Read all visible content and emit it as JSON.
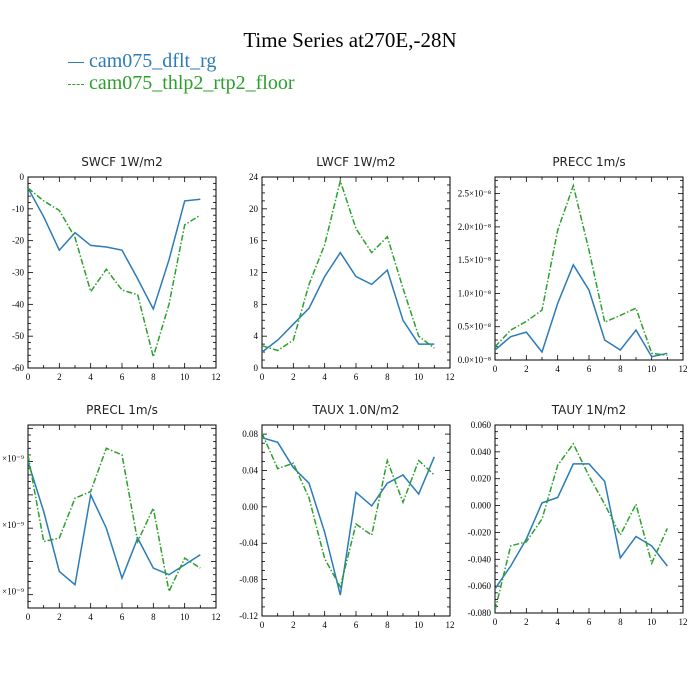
{
  "title": "Time Series at270E,-28N",
  "legend": [
    {
      "name": "cam075_dflt_rg",
      "color": "#2b7bb9"
    },
    {
      "name": "cam075_thlp2_rtp2_floor",
      "color": "#2ca02c"
    }
  ],
  "chart_data": [
    {
      "type": "line",
      "title": "SWCF   1W/m2",
      "x": [
        0,
        1,
        2,
        3,
        4,
        5,
        6,
        7,
        8,
        9,
        10,
        11
      ],
      "xlim": [
        0,
        12
      ],
      "ylim": [
        -60,
        0
      ],
      "xticks": [
        "0",
        "2",
        "4",
        "6",
        "8",
        "10",
        "12"
      ],
      "yticks": [
        "0",
        "-10",
        "-20",
        "-30",
        "-40",
        "-50",
        "-60"
      ],
      "series": [
        {
          "name": "cam075_dflt_rg",
          "values": [
            -3.5,
            -12.5,
            -23,
            -17.5,
            -21.5,
            -22,
            -23,
            -32,
            -41.5,
            -26,
            -7.5,
            -7
          ]
        },
        {
          "name": "cam075_thlp2_rtp2_floor",
          "values": [
            -3.5,
            -7.5,
            -10.5,
            -19,
            -36,
            -29,
            -35.5,
            -37,
            -56.5,
            -40,
            -15,
            -12
          ]
        }
      ]
    },
    {
      "type": "line",
      "title": "LWCF   1W/m2",
      "x": [
        0,
        1,
        2,
        3,
        4,
        5,
        6,
        7,
        8,
        9,
        10,
        11
      ],
      "xlim": [
        0,
        12
      ],
      "ylim": [
        0,
        24
      ],
      "xticks": [
        "0",
        "2",
        "4",
        "6",
        "8",
        "10",
        "12"
      ],
      "yticks": [
        "24",
        "20",
        "16",
        "12",
        "8",
        "4",
        "0"
      ],
      "series": [
        {
          "name": "cam075_dflt_rg",
          "values": [
            2,
            3.5,
            5.5,
            7.5,
            11.5,
            14.5,
            11.5,
            10.5,
            12.3,
            6,
            3,
            3
          ]
        },
        {
          "name": "cam075_thlp2_rtp2_floor",
          "values": [
            2.8,
            2.2,
            3.5,
            10.5,
            15.5,
            23.5,
            17.5,
            14.5,
            16.5,
            10,
            4,
            2.5
          ]
        }
      ]
    },
    {
      "type": "line",
      "title": "PRECC   1m/s",
      "x": [
        0,
        1,
        2,
        3,
        4,
        5,
        6,
        7,
        8,
        9,
        10,
        11
      ],
      "xlim": [
        0,
        12
      ],
      "ylim": [
        0,
        2.75
      ],
      "xticks": [
        "0",
        "2",
        "4",
        "6",
        "8",
        "10",
        "12"
      ],
      "yticks": [
        "2.5×10⁻⁸",
        "2.0×10⁻⁸",
        "1.5×10⁻⁸",
        "1.0×10⁻⁸",
        "0.5×10⁻⁸",
        "0.0×10⁻⁸"
      ],
      "series": [
        {
          "name": "cam075_dflt_rg",
          "values": [
            0.15,
            0.35,
            0.42,
            0.12,
            0.85,
            1.43,
            1.05,
            0.3,
            0.15,
            0.45,
            0.05,
            0.1
          ]
        },
        {
          "name": "cam075_thlp2_rtp2_floor",
          "values": [
            0.2,
            0.45,
            0.58,
            0.75,
            1.95,
            2.62,
            1.65,
            0.57,
            0.67,
            0.78,
            0.1,
            0.07
          ]
        }
      ]
    },
    {
      "type": "line",
      "title": "PRECL   1m/s",
      "x": [
        0,
        1,
        2,
        3,
        4,
        5,
        6,
        7,
        8,
        9,
        10,
        11
      ],
      "xlim": [
        0,
        12
      ],
      "ylim": [
        0.3,
        3.05
      ],
      "xticks": [
        "0",
        "2",
        "4",
        "6",
        "8",
        "10",
        "12"
      ],
      "yticks": [
        "×10⁻⁹",
        "×10⁻⁹",
        "×10⁻⁹"
      ],
      "series": [
        {
          "name": "cam075_dflt_rg",
          "values": [
            2.5,
            1.75,
            0.85,
            0.65,
            2.0,
            1.5,
            0.75,
            1.35,
            0.9,
            0.8,
            0.95,
            1.1
          ]
        },
        {
          "name": "cam075_thlp2_rtp2_floor",
          "values": [
            2.6,
            1.3,
            1.35,
            1.95,
            2.05,
            2.7,
            2.6,
            1.3,
            1.8,
            0.55,
            1.05,
            0.9
          ]
        }
      ]
    },
    {
      "type": "line",
      "title": "TAUX   1.0N/m2",
      "x": [
        0,
        1,
        2,
        3,
        4,
        5,
        6,
        7,
        8,
        9,
        10,
        11
      ],
      "xlim": [
        0,
        12
      ],
      "ylim": [
        -0.12,
        0.09
      ],
      "xticks": [
        "0",
        "2",
        "4",
        "6",
        "8",
        "10",
        "12"
      ],
      "yticks": [
        "0.08",
        "0.04",
        "0.00",
        "-0.04",
        "-0.08",
        "-0.12"
      ],
      "series": [
        {
          "name": "cam075_dflt_rg",
          "values": [
            0.076,
            0.071,
            0.043,
            0.026,
            -0.028,
            -0.097,
            0.016,
            0.001,
            0.026,
            0.035,
            0.014,
            0.055
          ]
        },
        {
          "name": "cam075_thlp2_rtp2_floor",
          "values": [
            0.081,
            0.042,
            0.048,
            0.01,
            -0.057,
            -0.088,
            -0.019,
            -0.031,
            0.051,
            0.005,
            0.051,
            0.035
          ]
        }
      ]
    },
    {
      "type": "line",
      "title": "TAUY   1N/m2",
      "x": [
        0,
        1,
        2,
        3,
        4,
        5,
        6,
        7,
        8,
        9,
        10,
        11
      ],
      "xlim": [
        0,
        12
      ],
      "ylim": [
        -0.08,
        0.06
      ],
      "xticks": [
        "0",
        "2",
        "4",
        "6",
        "8",
        "10",
        "12"
      ],
      "yticks": [
        "0.060",
        "0.040",
        "0.020",
        "0.000",
        "-0.020",
        "-0.040",
        "-0.060",
        "-0.080"
      ],
      "series": [
        {
          "name": "cam075_dflt_rg",
          "values": [
            -0.062,
            -0.045,
            -0.025,
            0.002,
            0.006,
            0.031,
            0.031,
            0.018,
            -0.039,
            -0.023,
            -0.03,
            -0.045
          ]
        },
        {
          "name": "cam075_thlp2_rtp2_floor",
          "values": [
            -0.078,
            -0.03,
            -0.027,
            -0.01,
            0.03,
            0.046,
            0.022,
            0.001,
            -0.022,
            0.001,
            -0.043,
            -0.017
          ]
        }
      ]
    }
  ]
}
